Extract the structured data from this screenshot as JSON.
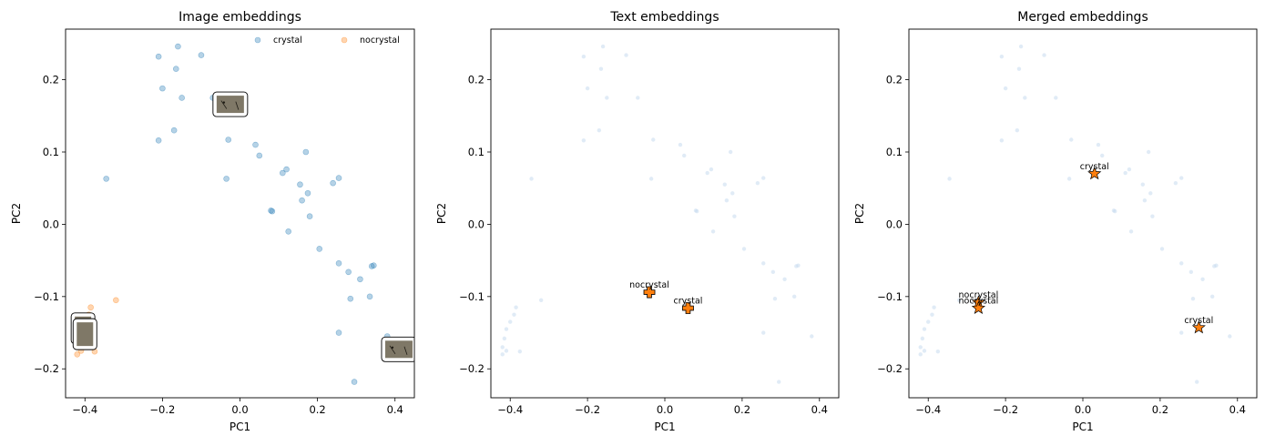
{
  "chart_data": [
    {
      "type": "scatter",
      "title": "Image embeddings",
      "xlabel": "PC1",
      "ylabel": "PC2",
      "xlim": [
        -0.45,
        0.45
      ],
      "ylim": [
        -0.24,
        0.27
      ],
      "xticks": [
        -0.4,
        -0.2,
        0.0,
        0.2,
        0.4
      ],
      "yticks": [
        -0.2,
        -0.1,
        0.0,
        0.1,
        0.2
      ],
      "xtick_labels": [
        "−0.4",
        "−0.2",
        "0.0",
        "0.2",
        "0.4"
      ],
      "ytick_labels": [
        "−0.2",
        "−0.1",
        "0.0",
        "0.1",
        "0.2"
      ],
      "legend": {
        "placement": "top-right",
        "entries": [
          "crystal",
          "nocrystal"
        ]
      },
      "series": [
        {
          "name": "crystal",
          "color": "#1f77b4",
          "points": [
            [
              -0.16,
              0.246
            ],
            [
              -0.21,
              0.232
            ],
            [
              -0.1,
              0.234
            ],
            [
              -0.165,
              0.215
            ],
            [
              -0.2,
              0.188
            ],
            [
              -0.15,
              0.175
            ],
            [
              -0.07,
              0.175
            ],
            [
              -0.17,
              0.13
            ],
            [
              -0.21,
              0.116
            ],
            [
              -0.03,
              0.117
            ],
            [
              0.04,
              0.11
            ],
            [
              0.17,
              0.1
            ],
            [
              0.05,
              0.095
            ],
            [
              -0.035,
              0.063
            ],
            [
              0.12,
              0.076
            ],
            [
              0.11,
              0.071
            ],
            [
              -0.345,
              0.063
            ],
            [
              0.255,
              0.064
            ],
            [
              0.24,
              0.057
            ],
            [
              0.155,
              0.055
            ],
            [
              0.175,
              0.043
            ],
            [
              0.16,
              0.033
            ],
            [
              0.08,
              0.019
            ],
            [
              0.083,
              0.018
            ],
            [
              0.18,
              0.011
            ],
            [
              0.125,
              -0.01
            ],
            [
              0.205,
              -0.034
            ],
            [
              0.255,
              -0.054
            ],
            [
              0.345,
              -0.057
            ],
            [
              0.34,
              -0.058
            ],
            [
              0.28,
              -0.066
            ],
            [
              0.31,
              -0.076
            ],
            [
              0.285,
              -0.103
            ],
            [
              0.335,
              -0.1
            ],
            [
              0.255,
              -0.15
            ],
            [
              0.295,
              -0.218
            ],
            [
              0.38,
              -0.155
            ]
          ]
        },
        {
          "name": "nocrystal",
          "color": "#ff7f0e",
          "points": [
            [
              -0.32,
              -0.105
            ],
            [
              -0.385,
              -0.115
            ],
            [
              -0.39,
              -0.125
            ],
            [
              -0.4,
              -0.135
            ],
            [
              -0.41,
              -0.145
            ],
            [
              -0.415,
              -0.158
            ],
            [
              -0.42,
              -0.17
            ],
            [
              -0.41,
              -0.175
            ],
            [
              -0.375,
              -0.176
            ],
            [
              -0.42,
              -0.18
            ]
          ]
        }
      ],
      "thumbnails": [
        {
          "at": [
            -0.025,
            0.166
          ]
        },
        {
          "at": [
            0.41,
            -0.173
          ]
        },
        {
          "at": [
            -0.405,
            -0.144
          ]
        },
        {
          "at": [
            -0.4,
            -0.152
          ]
        }
      ]
    },
    {
      "type": "scatter",
      "title": "Text embeddings",
      "xlabel": "PC1",
      "ylabel": "PC2",
      "xlim": [
        -0.45,
        0.45
      ],
      "ylim": [
        -0.24,
        0.27
      ],
      "xticks": [
        -0.4,
        -0.2,
        0.0,
        0.2,
        0.4
      ],
      "yticks": [
        -0.2,
        -0.1,
        0.0,
        0.1,
        0.2
      ],
      "xtick_labels": [
        "−0.4",
        "−0.2",
        "0.0",
        "0.2",
        "0.4"
      ],
      "ytick_labels": [
        "−0.2",
        "−0.1",
        "0.0",
        "0.1",
        "0.2"
      ],
      "background_points_color": "#c6dbef",
      "markers": [
        {
          "label": "nocrystal",
          "x": -0.04,
          "y": -0.094,
          "shape": "plus",
          "color": "#ff7f0e"
        },
        {
          "label": "crystal",
          "x": 0.06,
          "y": -0.116,
          "shape": "plus",
          "color": "#ff7f0e"
        }
      ]
    },
    {
      "type": "scatter",
      "title": "Merged embeddings",
      "xlabel": "PC1",
      "ylabel": "PC2",
      "xlim": [
        -0.45,
        0.45
      ],
      "ylim": [
        -0.24,
        0.27
      ],
      "xticks": [
        -0.4,
        -0.2,
        0.0,
        0.2,
        0.4
      ],
      "yticks": [
        -0.2,
        -0.1,
        0.0,
        0.1,
        0.2
      ],
      "xtick_labels": [
        "−0.4",
        "−0.2",
        "0.0",
        "0.2",
        "0.4"
      ],
      "ytick_labels": [
        "−0.2",
        "−0.1",
        "0.0",
        "0.1",
        "0.2"
      ],
      "background_points_color": "#c6dbef",
      "markers": [
        {
          "label": "crystal",
          "x": 0.03,
          "y": 0.07,
          "shape": "star",
          "color": "#ff7f0e"
        },
        {
          "label": "nocrystal",
          "x": -0.27,
          "y": -0.108,
          "shape": "star",
          "color": "#ff7f0e"
        },
        {
          "label": "nocrystal",
          "x": -0.27,
          "y": -0.116,
          "shape": "star",
          "color": "#ff7f0e"
        },
        {
          "label": "crystal",
          "x": 0.3,
          "y": -0.143,
          "shape": "star",
          "color": "#ff7f0e"
        }
      ]
    }
  ]
}
